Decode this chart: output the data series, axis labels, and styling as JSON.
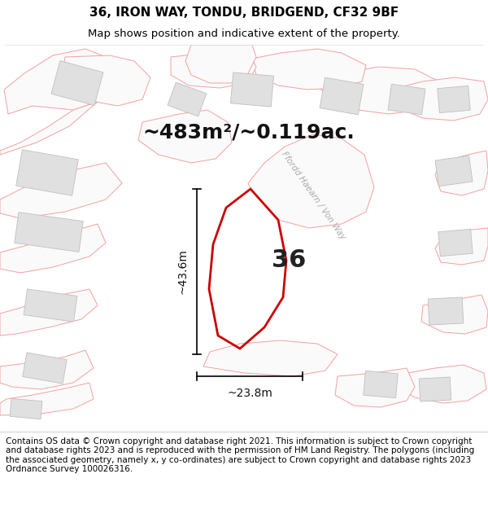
{
  "title_line1": "36, IRON WAY, TONDU, BRIDGEND, CF32 9BF",
  "title_line2": "Map shows position and indicative extent of the property.",
  "footer": "Contains OS data © Crown copyright and database right 2021. This information is subject to Crown copyright and database rights 2023 and is reproduced with the permission of HM Land Registry. The polygons (including the associated geometry, namely x, y co-ordinates) are subject to Crown copyright and database rights 2023 Ordnance Survey 100026316.",
  "area_label": "~483m²/~0.119ac.",
  "number_label": "36",
  "dim_vertical": "~43.6m",
  "dim_horizontal": "~23.8m",
  "street_label": "Ffordd Haearn / Von Way",
  "map_bg": "#ffffff",
  "building_fill": "#e0e0e0",
  "building_edge": "#c0c0c0",
  "boundary_color": "#f5a0a0",
  "property_color": "#cc0000",
  "title_fontsize": 11,
  "subtitle_fontsize": 9.5,
  "area_fontsize": 18,
  "number_fontsize": 22,
  "dim_fontsize": 10,
  "footer_fontsize": 7.5,
  "street_fontsize": 7.5
}
